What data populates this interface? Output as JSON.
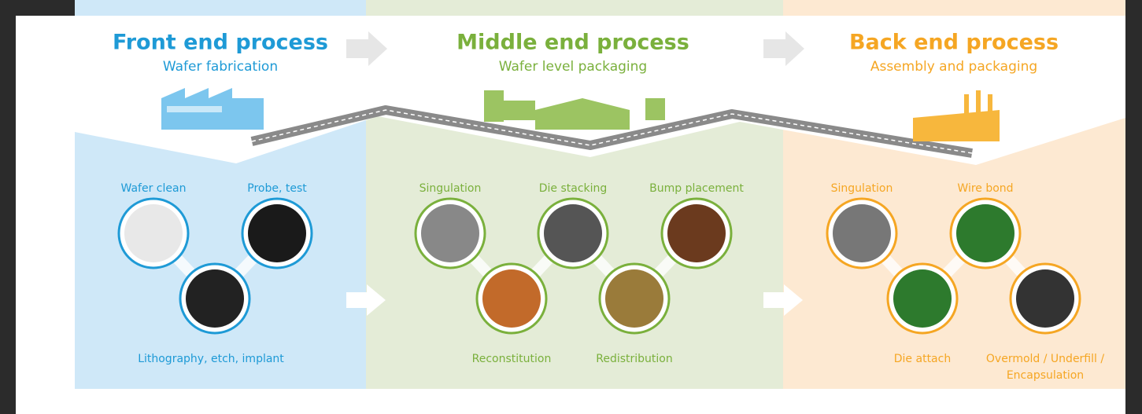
{
  "sections": [
    {
      "title": "Front end process",
      "subtitle": "Wafer fabrication",
      "color": "#1e9ad6",
      "band": "#cfe8f8",
      "steps": [
        {
          "lines": [
            "Wafer clean"
          ]
        },
        {
          "lines": [
            "Probe, test"
          ]
        },
        {
          "lines": [
            "Lithography, etch, implant"
          ]
        }
      ]
    },
    {
      "title": "Middle end process",
      "subtitle": "Wafer level packaging",
      "color": "#7ab03c",
      "band": "#e4ecd7",
      "steps": [
        {
          "lines": [
            "Singulation"
          ]
        },
        {
          "lines": [
            "Die stacking"
          ]
        },
        {
          "lines": [
            "Bump placement"
          ]
        },
        {
          "lines": [
            "Reconstitution"
          ]
        },
        {
          "lines": [
            "Redistribution"
          ]
        }
      ]
    },
    {
      "title": "Back end process",
      "subtitle": "Assembly and packaging",
      "color": "#f5a623",
      "band": "#fde9d2",
      "steps": [
        {
          "lines": [
            "Singulation"
          ]
        },
        {
          "lines": [
            "Wire bond"
          ]
        },
        {
          "lines": [
            "Die attach"
          ]
        },
        {
          "lines": [
            "Overmold / Underfill /",
            "Encapsulation"
          ]
        }
      ]
    }
  ]
}
